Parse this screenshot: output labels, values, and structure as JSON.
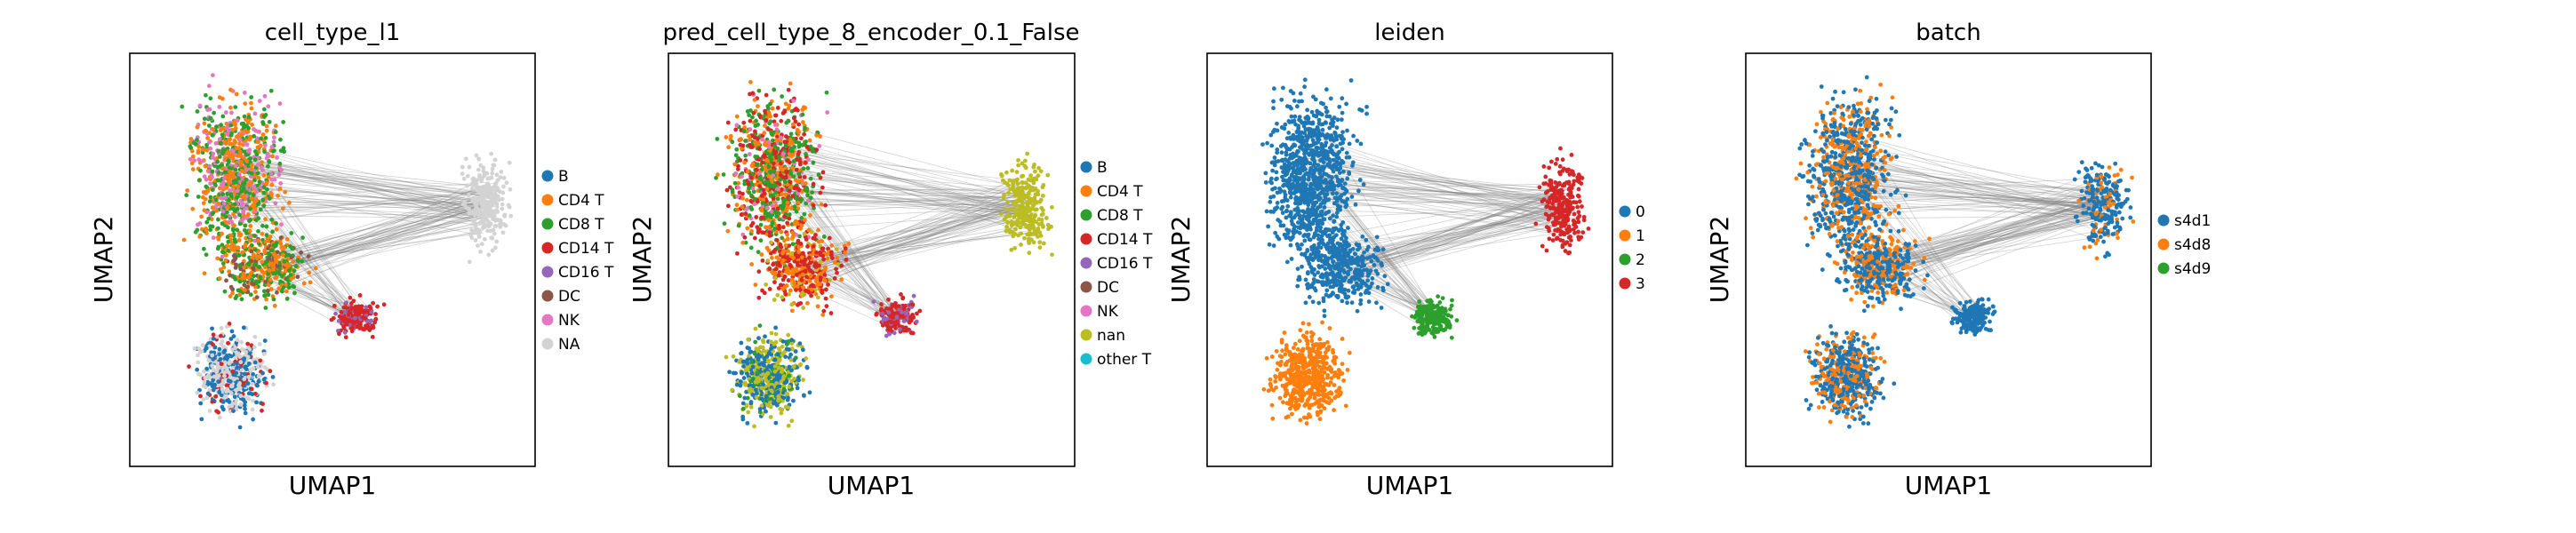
{
  "figure": {
    "background": "#ffffff",
    "edge_color": "#808080"
  },
  "chart_data": [
    {
      "type": "scatter",
      "title": "cell_type_l1",
      "xlabel": "UMAP1",
      "ylabel": "UMAP2",
      "grid": false,
      "legend_position": "right",
      "categories": [
        {
          "name": "B",
          "color": "#1f77b4"
        },
        {
          "name": "CD4 T",
          "color": "#ff7f0e"
        },
        {
          "name": "CD8 T",
          "color": "#2ca02c"
        },
        {
          "name": "CD14 T",
          "color": "#d62728"
        },
        {
          "name": "CD16 T",
          "color": "#9467bd"
        },
        {
          "name": "DC",
          "color": "#8c564b"
        },
        {
          "name": "NK",
          "color": "#e377c2"
        },
        {
          "name": "NA",
          "color": "#d3d3d3"
        }
      ]
    },
    {
      "type": "scatter",
      "title": "pred_cell_type_8_encoder_0.1_False",
      "xlabel": "UMAP1",
      "ylabel": "UMAP2",
      "grid": false,
      "legend_position": "right",
      "categories": [
        {
          "name": "B",
          "color": "#1f77b4"
        },
        {
          "name": "CD4 T",
          "color": "#ff7f0e"
        },
        {
          "name": "CD8 T",
          "color": "#2ca02c"
        },
        {
          "name": "CD14 T",
          "color": "#d62728"
        },
        {
          "name": "CD16 T",
          "color": "#9467bd"
        },
        {
          "name": "DC",
          "color": "#8c564b"
        },
        {
          "name": "NK",
          "color": "#e377c2"
        },
        {
          "name": "nan",
          "color": "#bcbd22"
        },
        {
          "name": "other T",
          "color": "#17becf"
        }
      ]
    },
    {
      "type": "scatter",
      "title": "leiden",
      "xlabel": "UMAP1",
      "ylabel": "UMAP2",
      "grid": false,
      "legend_position": "right",
      "categories": [
        {
          "name": "0",
          "color": "#1f77b4"
        },
        {
          "name": "1",
          "color": "#ff7f0e"
        },
        {
          "name": "2",
          "color": "#2ca02c"
        },
        {
          "name": "3",
          "color": "#d62728"
        }
      ]
    },
    {
      "type": "scatter",
      "title": "batch",
      "xlabel": "UMAP1",
      "ylabel": "UMAP2",
      "grid": false,
      "legend_position": "right",
      "categories": [
        {
          "name": "s4d1",
          "color": "#1f77b4"
        },
        {
          "name": "s4d8",
          "color": "#ff7f0e"
        },
        {
          "name": "s4d9",
          "color": "#2ca02c"
        }
      ]
    }
  ]
}
